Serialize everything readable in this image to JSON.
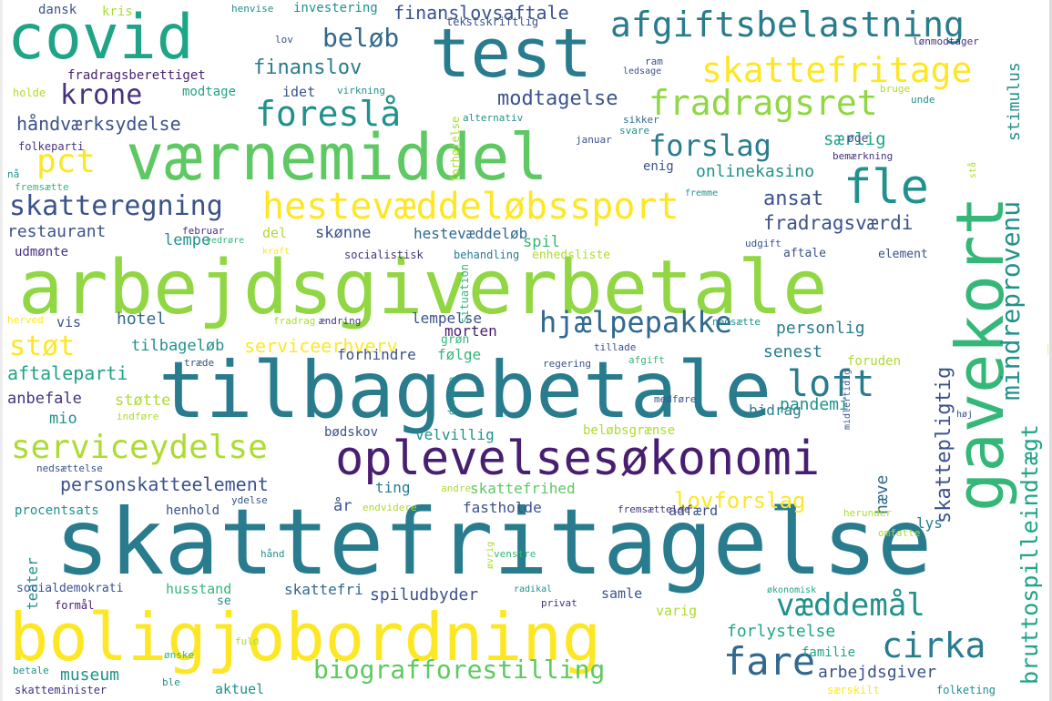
{
  "palette": {
    "background": "#ffffff",
    "dark_purple": "#481f70",
    "purple": "#46337e",
    "indigo": "#3b528b",
    "blue": "#31688e",
    "steel_blue": "#287c8e",
    "teal": "#21918c",
    "sea_green": "#20a486",
    "green": "#35b779",
    "light_green": "#5ec962",
    "lime": "#90d743",
    "yellow_green": "#addc30",
    "yellow": "#fde725"
  },
  "words": [
    {
      "text": "skattefritagelse"
    },
    {
      "text": "arbejdsgiverbetale"
    },
    {
      "text": "tilbagebetale"
    },
    {
      "text": "boligjobordning"
    },
    {
      "text": "værnemiddel"
    },
    {
      "text": "gavekort"
    },
    {
      "text": "test"
    },
    {
      "text": "covid"
    },
    {
      "text": "oplevelsesøkonomi"
    },
    {
      "text": "hestevæddeløbssport"
    },
    {
      "text": "afgiftsbelastning"
    },
    {
      "text": "skattefritage"
    },
    {
      "text": "fradragsret"
    },
    {
      "text": "mindreprovenu"
    },
    {
      "text": "foreslå"
    },
    {
      "text": "fle"
    },
    {
      "text": "serviceydelse"
    },
    {
      "text": "hjælpepakke"
    },
    {
      "text": "forslag"
    },
    {
      "text": "skatteregning"
    },
    {
      "text": "biografforestilling"
    },
    {
      "text": "bruttospilleindtægt"
    },
    {
      "text": "loft"
    },
    {
      "text": "fare"
    },
    {
      "text": "cirka"
    },
    {
      "text": "væddemål"
    },
    {
      "text": "pct"
    },
    {
      "text": "krone"
    },
    {
      "text": "beløb"
    },
    {
      "text": "støt"
    },
    {
      "text": "personskatteelement"
    },
    {
      "text": "håndværksydelse"
    },
    {
      "text": "modtagelse"
    },
    {
      "text": "finanslov"
    },
    {
      "text": "serviceerhverv"
    },
    {
      "text": "lovforslag"
    },
    {
      "text": "finanslovsaftale"
    },
    {
      "text": "skattepligtig"
    },
    {
      "text": "ansat"
    },
    {
      "text": "fradragsværdi"
    },
    {
      "text": "stimulus"
    },
    {
      "text": "særlig"
    },
    {
      "text": "onlinekasino"
    },
    {
      "text": "aftaleparti"
    },
    {
      "text": "restaurant"
    },
    {
      "text": "hotel"
    },
    {
      "text": "spiludbyder"
    },
    {
      "text": "personlig"
    },
    {
      "text": "senest"
    },
    {
      "text": "pandemi"
    },
    {
      "text": "arbejdsgiver"
    },
    {
      "text": "forlystelse"
    },
    {
      "text": "museum"
    },
    {
      "text": "hestevæddeløb"
    },
    {
      "text": "skønne"
    },
    {
      "text": "lempe"
    },
    {
      "text": "spil"
    },
    {
      "text": "støtte"
    },
    {
      "text": "mio"
    },
    {
      "text": "anbefale"
    },
    {
      "text": "tilbageløb"
    },
    {
      "text": "forhindre"
    },
    {
      "text": "følge"
    },
    {
      "text": "lempelse"
    },
    {
      "text": "morten"
    },
    {
      "text": "bidrag"
    },
    {
      "text": "velvillig"
    },
    {
      "text": "skattefrihed"
    },
    {
      "text": "fastholde"
    },
    {
      "text": "adfærd"
    },
    {
      "text": "hæve"
    },
    {
      "text": "lys"
    },
    {
      "text": "ting"
    },
    {
      "text": "år"
    },
    {
      "text": "teater"
    },
    {
      "text": "husstand"
    },
    {
      "text": "skattefri"
    },
    {
      "text": "samle"
    },
    {
      "text": "varig"
    },
    {
      "text": "aktuel"
    },
    {
      "text": "familie"
    },
    {
      "text": "foruden"
    },
    {
      "text": "vis"
    },
    {
      "text": "del"
    },
    {
      "text": "enig"
    },
    {
      "text": "idet"
    },
    {
      "text": "modtage"
    },
    {
      "text": "fradragsberettiget"
    },
    {
      "text": "investering"
    },
    {
      "text": "dansk"
    },
    {
      "text": "kris"
    },
    {
      "text": "udmønte"
    },
    {
      "text": "procentsats"
    },
    {
      "text": "henhold"
    },
    {
      "text": "socialdemokrati"
    },
    {
      "text": "beløbsgrænse"
    },
    {
      "text": "bødskov"
    },
    {
      "text": "element"
    },
    {
      "text": "aftale"
    },
    {
      "text": "grøn"
    },
    {
      "text": "enhedsliste"
    },
    {
      "text": "socialistisk"
    },
    {
      "text": "behandling"
    },
    {
      "text": "tekstskriftlig"
    },
    {
      "text": "henvise"
    },
    {
      "text": "lov"
    },
    {
      "text": "ledsage"
    },
    {
      "text": "ram"
    },
    {
      "text": "lønmodtager"
    },
    {
      "text": "holde"
    },
    {
      "text": "virkning"
    },
    {
      "text": "alternativ"
    },
    {
      "text": "sikker"
    },
    {
      "text": "svare"
    },
    {
      "text": "unde"
    },
    {
      "text": "bruge"
    },
    {
      "text": "folkeparti"
    },
    {
      "text": "januar"
    },
    {
      "text": "forhøjelse"
    },
    {
      "text": "øge"
    },
    {
      "text": "bemærkning"
    },
    {
      "text": "stå"
    },
    {
      "text": "nå"
    },
    {
      "text": "fremsætte"
    },
    {
      "text": "fremme"
    },
    {
      "text": "februar"
    },
    {
      "text": "vedrøre"
    },
    {
      "text": "kraft"
    },
    {
      "text": "udgift"
    },
    {
      "text": "situation"
    },
    {
      "text": "herved"
    },
    {
      "text": "fradrag"
    },
    {
      "text": "ændring"
    },
    {
      "text": "tillade"
    },
    {
      "text": "regering"
    },
    {
      "text": "afgift"
    },
    {
      "text": "nedsætte"
    },
    {
      "text": "træde"
    },
    {
      "text": "desuden"
    },
    {
      "text": "midlertidig"
    },
    {
      "text": "høj"
    },
    {
      "text": "indføre"
    },
    {
      "text": "medføre"
    },
    {
      "text": "nedsættelse"
    },
    {
      "text": "ydelse"
    },
    {
      "text": "endvidere"
    },
    {
      "text": "andre"
    },
    {
      "text": "fremsættelse"
    },
    {
      "text": "herunder"
    },
    {
      "text": "omfatte"
    },
    {
      "text": "hånd"
    },
    {
      "text": "øvrig"
    },
    {
      "text": "venstre"
    },
    {
      "text": "radikal"
    },
    {
      "text": "privat"
    },
    {
      "text": "økonomisk"
    },
    {
      "text": "formål"
    },
    {
      "text": "se"
    },
    {
      "text": "fuld"
    },
    {
      "text": "ønske"
    },
    {
      "text": "ble"
    },
    {
      "text": "betale"
    },
    {
      "text": "skatteminister"
    },
    {
      "text": "særskilt"
    },
    {
      "text": "folketing"
    },
    {
      "text": "ligningslov"
    }
  ]
}
